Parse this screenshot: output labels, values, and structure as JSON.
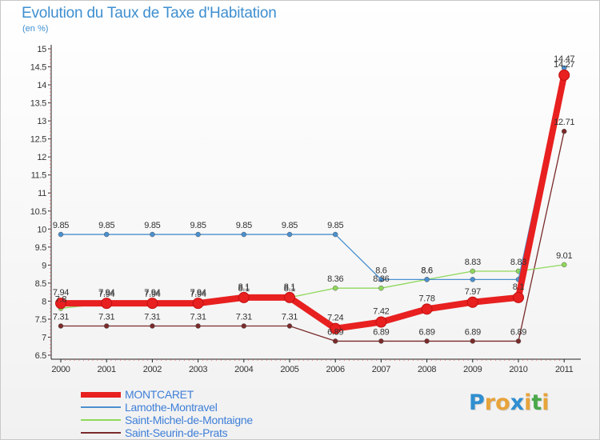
{
  "title": "Evolution du Taux de Taxe d'Habitation",
  "unit": "(en %)",
  "logo": {
    "letters": [
      "P",
      "r",
      "o",
      "x",
      "i",
      "t",
      "i"
    ],
    "colors": [
      "#2f8fd0",
      "#e8a33a",
      "#e8a33a",
      "#2f8fd0",
      "#e8a33a",
      "#4aa84a",
      "#e8a33a"
    ]
  },
  "chart_data": {
    "type": "line",
    "categories": [
      "2000",
      "2001",
      "2002",
      "2003",
      "2004",
      "2005",
      "2006",
      "2007",
      "2008",
      "2009",
      "2010",
      "2011"
    ],
    "ylim": [
      6.5,
      15
    ],
    "yticks": [
      "6.5",
      "7",
      "7.5",
      "8",
      "8.5",
      "9",
      "9.5",
      "10",
      "10.5",
      "11",
      "11.5",
      "12",
      "12.5",
      "13",
      "13.5",
      "14",
      "14.5",
      "15"
    ],
    "grid": false,
    "legend_position": "bottom-left",
    "series": [
      {
        "name": "MONTCARET",
        "color": "#e82020",
        "values": [
          7.94,
          7.94,
          7.94,
          7.94,
          8.1,
          8.1,
          7.24,
          7.42,
          7.78,
          7.97,
          8.1,
          14.27
        ],
        "labels": [
          "7.94",
          "7.94",
          "7.94",
          "7.94",
          "8.1",
          "8.1",
          "7.24",
          "7.42",
          "7.78",
          "7.97",
          "8.1",
          "14.27"
        ]
      },
      {
        "name": "Lamothe-Montravel",
        "color": "#4a90d0",
        "values": [
          9.85,
          9.85,
          9.85,
          9.85,
          9.85,
          9.85,
          9.85,
          8.6,
          8.6,
          8.6,
          8.6,
          14.47
        ],
        "labels": [
          "9.85",
          "9.85",
          "9.85",
          "9.85",
          "9.85",
          "9.85",
          "9.85",
          "8.6",
          "8.6",
          "",
          "",
          "14.47"
        ]
      },
      {
        "name": "Saint-Michel-de-Montaigne",
        "color": "#8fd85a",
        "values": [
          7.8,
          7.94,
          7.94,
          7.94,
          8.1,
          8.1,
          8.36,
          8.36,
          8.6,
          8.83,
          8.83,
          9.01
        ],
        "labels": [
          "7.8",
          "7.94",
          "7.94",
          "7.94",
          "8.1",
          "8.1",
          "8.36",
          "8.36",
          "8.6",
          "8.83",
          "8.83",
          "9.01"
        ]
      },
      {
        "name": "Saint-Seurin-de-Prats",
        "color": "#7a2a2a",
        "values": [
          7.31,
          7.31,
          7.31,
          7.31,
          7.31,
          7.31,
          6.89,
          6.89,
          6.89,
          6.89,
          6.89,
          12.71
        ],
        "labels": [
          "7.31",
          "7.31",
          "7.31",
          "7.31",
          "7.31",
          "7.31",
          "6.89",
          "6.89",
          "6.89",
          "6.89",
          "6.89",
          "12.71"
        ]
      }
    ]
  }
}
